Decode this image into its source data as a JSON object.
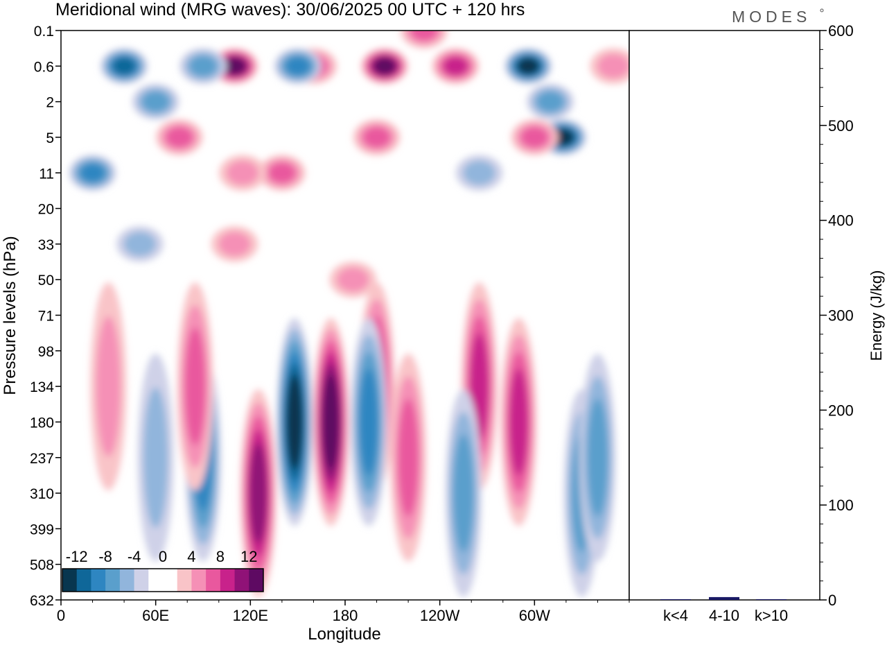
{
  "header": {
    "title": "Meridional wind (MRG waves):  30/06/2025  00 UTC  + 120 hrs",
    "brand": "MODES"
  },
  "chart_data": [
    {
      "type": "heatmap",
      "title": "Meridional wind (MRG waves):  30/06/2025  00 UTC  + 120 hrs",
      "xlabel": "Longitude",
      "ylabel": "Pressure levels (hPa)",
      "x_ticks": [
        "0",
        "60E",
        "120E",
        "180",
        "120W",
        "60W"
      ],
      "x_tick_values": [
        0,
        60,
        120,
        180,
        240,
        300
      ],
      "xlim": [
        0,
        360
      ],
      "y_ticks": [
        "0.1",
        "0.6",
        "2",
        "5",
        "11",
        "20",
        "33",
        "50",
        "71",
        "98",
        "134",
        "180",
        "237",
        "310",
        "399",
        "508",
        "632"
      ],
      "y_scale": "pressure-level index",
      "colorbar": {
        "labels": [
          "-12",
          "-8",
          "-4",
          "0",
          "4",
          "8",
          "12"
        ],
        "levels": [
          -14,
          -12,
          -10,
          -8,
          -6,
          -4,
          -2,
          2,
          4,
          6,
          8,
          10,
          12,
          14
        ],
        "colors": [
          "#08364f",
          "#0f6799",
          "#2e86c1",
          "#5a9fcc",
          "#91b5dc",
          "#cfd1e8",
          "#ffffff",
          "#ffffff",
          "#f9c4c8",
          "#f590b6",
          "#e9589e",
          "#c8228b",
          "#901277",
          "#5e0a62"
        ],
        "placement": "bottom-left"
      },
      "features": [
        {
          "lon": 171,
          "level": "180",
          "value": 14
        },
        {
          "lon": 148,
          "level": "180",
          "value": -12
        },
        {
          "lon": 125,
          "level": "310",
          "value": 10
        },
        {
          "lon": 205,
          "level": "0.6",
          "value": 14
        },
        {
          "lon": 110,
          "level": "0.6",
          "value": 14
        },
        {
          "lon": 296,
          "level": "0.6",
          "value": -14
        },
        {
          "lon": 318,
          "level": "5",
          "value": -14
        },
        {
          "lon": 40,
          "level": "0.6",
          "value": -10
        },
        {
          "lon": 290,
          "level": "180",
          "value": 8
        },
        {
          "lon": 90,
          "level": "237",
          "value": -8
        }
      ]
    },
    {
      "type": "bar",
      "categories": [
        "k<4",
        "4-10",
        "k>10"
      ],
      "values": [
        0,
        3,
        0
      ],
      "ylabel": "Energy (J/kg)",
      "ylim": [
        0,
        600
      ],
      "y_ticks": [
        0,
        100,
        200,
        300,
        400,
        500,
        600
      ],
      "bar_color": "#1a1a66"
    }
  ]
}
